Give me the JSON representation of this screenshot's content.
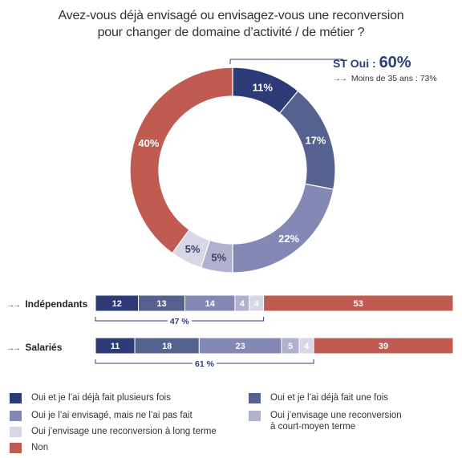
{
  "title": {
    "line1": "Avez-vous déjà envisagé ou envisagez-vous une reconversion",
    "line2": "pour changer de domaine d’activité / de métier ?"
  },
  "callout": {
    "st_label": "ST Oui :",
    "st_value": "60%",
    "sub_arrow": "→→",
    "sub_text": "Moins de 35 ans : 73%"
  },
  "colors": {
    "c1": "#2c3a76",
    "c2": "#55618f",
    "c3": "#8388b5",
    "c4": "#b0b1cf",
    "c5": "#d8d7e6",
    "c6": "#bf5b50"
  },
  "chart_data": [
    {
      "type": "pie",
      "variant": "donut",
      "categories": [
        "Oui et je l’ai déjà fait plusieurs fois",
        "Oui et je l’ai déjà fait une fois",
        "Oui je l’ai envisagé, mais ne l’ai pas fait",
        "Oui j’envisage une reconversion à court-moyen terme",
        "Oui j’envisage une reconversion à long terme",
        "Non"
      ],
      "values": [
        11,
        17,
        22,
        5,
        5,
        40
      ],
      "labels": [
        "11%",
        "17%",
        "22%",
        "5%",
        "5%",
        "40%"
      ]
    },
    {
      "type": "bar",
      "orientation": "horizontal",
      "stacked": true,
      "rows": [
        {
          "label": "Indépendants",
          "arrow": "→→",
          "values": [
            12,
            13,
            14,
            4,
            4,
            53
          ],
          "labels": [
            "12",
            "13",
            "14",
            "4",
            "4",
            "53"
          ],
          "bracket_label": "47 %"
        },
        {
          "label": "Salariés",
          "arrow": "→→",
          "values": [
            11,
            18,
            23,
            5,
            4,
            39
          ],
          "labels": [
            "11",
            "18",
            "23",
            "5",
            "4",
            "39"
          ],
          "bracket_label": "61 %"
        }
      ]
    }
  ],
  "legend": [
    {
      "label": "Oui et je l’ai déjà fait plusieurs fois",
      "color": "#2c3a76"
    },
    {
      "label": "Oui et je l’ai déjà fait une fois",
      "color": "#55618f"
    },
    {
      "label": "Oui je l’ai envisagé, mais ne l’ai pas fait",
      "color": "#8388b5"
    },
    {
      "label": "Oui j’envisage une reconversion à court-moyen terme",
      "line1": "Oui j’envisage une reconversion",
      "line2": "à court-moyen terme",
      "color": "#b0b1cf"
    },
    {
      "label": "Oui j’envisage une reconversion à long terme",
      "color": "#d8d7e6"
    },
    {
      "label": "Non",
      "color": "#bf5b50"
    }
  ]
}
